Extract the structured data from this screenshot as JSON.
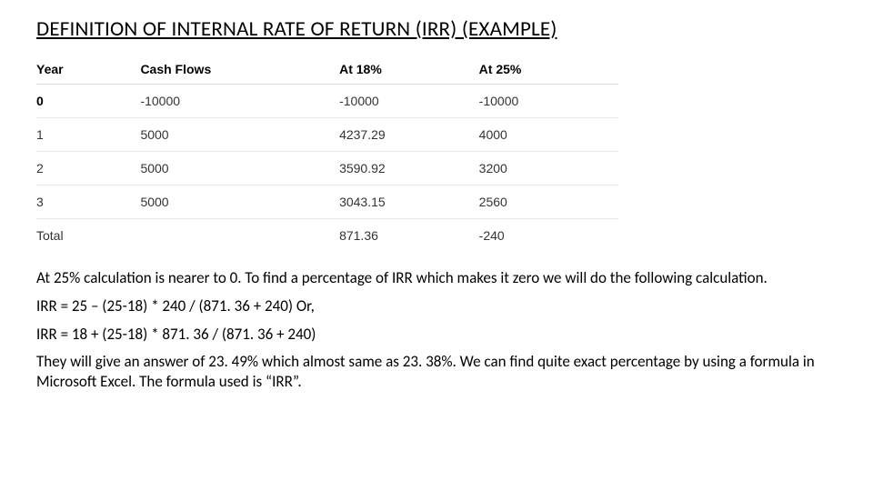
{
  "title": "DEFINITION OF INTERNAL RATE OF RETURN (IRR) (EXAMPLE)",
  "table": {
    "headers": {
      "year": "Year",
      "cash": "Cash Flows",
      "rate1": "At 18%",
      "rate2": "At 25%"
    },
    "rows": [
      {
        "year": "0",
        "cash": "-10000",
        "r1": "-10000",
        "r2": "-10000",
        "bold_year": true
      },
      {
        "year": "1",
        "cash": "5000",
        "r1": "4237.29",
        "r2": "4000"
      },
      {
        "year": "2",
        "cash": "5000",
        "r1": "3590.92",
        "r2": "3200"
      },
      {
        "year": "3",
        "cash": "5000",
        "r1": "3043.15",
        "r2": "2560"
      },
      {
        "year": "Total",
        "cash": "",
        "r1": "871.36",
        "r2": "-240"
      }
    ]
  },
  "paragraphs": {
    "p1": "At 25% calculation is nearer to 0. To find a percentage of IRR which makes it zero we will do the following calculation.",
    "p2": "IRR = 25 – (25-18) * 240 / (871. 36 + 240) Or,",
    "p3": "IRR = 18 + (25-18) * 871. 36 / (871. 36 + 240)",
    "p4": "They will give an answer of 23. 49% which almost same as 23. 38%. We can find quite exact percentage by using a formula in Microsoft Excel. The formula used is “IRR”."
  }
}
